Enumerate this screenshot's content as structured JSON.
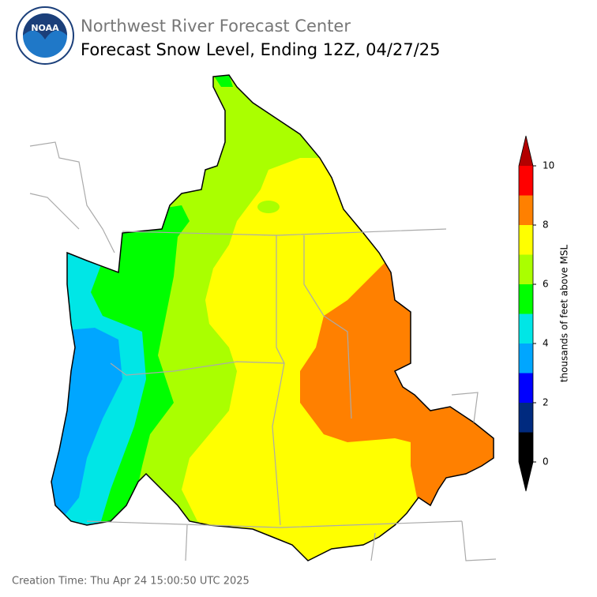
{
  "header": {
    "agency": "Northwest River Forecast Center",
    "title": "Forecast Snow Level, Ending 12Z, 04/27/25",
    "logo": "NOAA"
  },
  "colorbar": {
    "label": "thousands of feet above MSL",
    "lim": [
      0,
      10
    ],
    "ticks": [
      0,
      2,
      4,
      6,
      8,
      10
    ],
    "bounds": [
      0,
      1,
      2,
      3,
      4,
      5,
      6,
      7,
      8,
      9,
      10
    ],
    "colors": [
      "#000000",
      "#002a7f",
      "#0000ff",
      "#00a6ff",
      "#00e6e6",
      "#00ff00",
      "#aaff00",
      "#ffff00",
      "#ff8000",
      "#ff0000"
    ],
    "under_color": "#000000",
    "over_color": "#b30000"
  },
  "footer": "Creation Time: Thu Apr 24 15:00:50 UTC 2025"
}
